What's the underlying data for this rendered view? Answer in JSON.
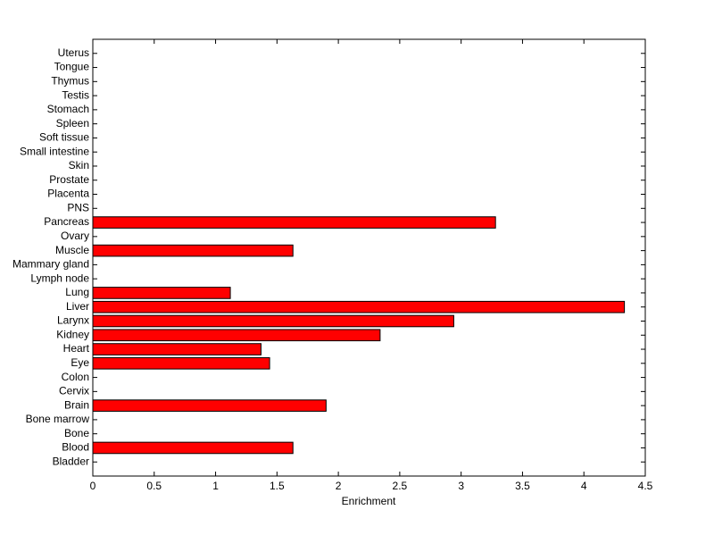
{
  "chart_data": {
    "type": "hbar",
    "x_label": "Enrichment",
    "categories": [
      "Bladder",
      "Blood",
      "Bone",
      "Bone marrow",
      "Brain",
      "Cervix",
      "Colon",
      "Eye",
      "Heart",
      "Kidney",
      "Larynx",
      "Liver",
      "Lung",
      "Lymph node",
      "Mammary gland",
      "Muscle",
      "Ovary",
      "Pancreas",
      "PNS",
      "Placenta",
      "Prostate",
      "Skin",
      "Small intestine",
      "Soft tissue",
      "Spleen",
      "Stomach",
      "Testis",
      "Thymus",
      "Tongue",
      "Uterus"
    ],
    "values": [
      0,
      1.63,
      0,
      0,
      1.9,
      0,
      0,
      1.44,
      1.37,
      2.34,
      2.94,
      4.33,
      1.12,
      0,
      0,
      1.63,
      0,
      3.28,
      0,
      0,
      0,
      0,
      0,
      0,
      0,
      0,
      0,
      0,
      0,
      0
    ],
    "color": "#ff0000",
    "xlim": [
      0,
      4.5
    ],
    "xticks": [
      0,
      0.5,
      1,
      1.5,
      2,
      2.5,
      3,
      3.5,
      4,
      4.5
    ]
  }
}
